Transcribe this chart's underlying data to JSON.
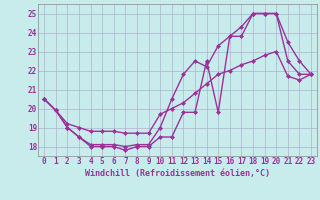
{
  "bg_color": "#c8ecec",
  "grid_color": "#b0b0cc",
  "line_color": "#993399",
  "marker": "D",
  "marker_size": 2,
  "line_width": 1.0,
  "xlim": [
    -0.5,
    23.5
  ],
  "ylim": [
    17.5,
    25.5
  ],
  "yticks": [
    18,
    19,
    20,
    21,
    22,
    23,
    24,
    25
  ],
  "xticks": [
    0,
    1,
    2,
    3,
    4,
    5,
    6,
    7,
    8,
    9,
    10,
    11,
    12,
    13,
    14,
    15,
    16,
    17,
    18,
    19,
    20,
    21,
    22,
    23
  ],
  "xlabel": "Windchill (Refroidissement éolien,°C)",
  "line1_x": [
    0,
    1,
    2,
    3,
    4,
    5,
    6,
    7,
    8,
    9,
    10,
    11,
    12,
    13,
    14,
    15,
    16,
    17,
    18,
    19,
    20,
    21,
    22,
    23
  ],
  "line1_y": [
    20.5,
    19.9,
    19.0,
    18.5,
    18.0,
    18.0,
    18.0,
    17.8,
    18.0,
    18.0,
    18.5,
    18.5,
    19.8,
    19.8,
    22.5,
    19.8,
    23.8,
    23.8,
    25.0,
    25.0,
    25.0,
    23.5,
    22.5,
    21.8
  ],
  "line2_x": [
    0,
    1,
    2,
    3,
    4,
    5,
    6,
    7,
    8,
    9,
    10,
    11,
    12,
    13,
    14,
    15,
    16,
    17,
    18,
    19,
    20,
    21,
    22,
    23
  ],
  "line2_y": [
    20.5,
    19.9,
    19.0,
    18.5,
    18.1,
    18.1,
    18.1,
    18.0,
    18.1,
    18.1,
    19.0,
    20.5,
    21.8,
    22.5,
    22.2,
    23.3,
    23.8,
    24.3,
    25.0,
    25.0,
    25.0,
    22.5,
    21.8,
    21.8
  ],
  "line3_x": [
    0,
    1,
    2,
    3,
    4,
    5,
    6,
    7,
    8,
    9,
    10,
    11,
    12,
    13,
    14,
    15,
    16,
    17,
    18,
    19,
    20,
    21,
    22,
    23
  ],
  "line3_y": [
    20.5,
    19.9,
    19.2,
    19.0,
    18.8,
    18.8,
    18.8,
    18.7,
    18.7,
    18.7,
    19.7,
    20.0,
    20.3,
    20.8,
    21.3,
    21.8,
    22.0,
    22.3,
    22.5,
    22.8,
    23.0,
    21.7,
    21.5,
    21.8
  ],
  "tick_color": "#993399",
  "tick_fontsize": 5.5,
  "xlabel_fontsize": 6.0
}
